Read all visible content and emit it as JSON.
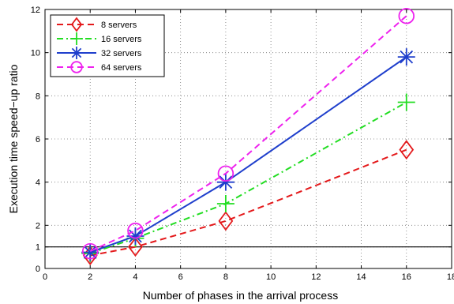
{
  "chart_data": {
    "type": "line",
    "xlabel": "Number of phases in the arrival process",
    "ylabel": "Execution time speed−up ratio",
    "xlim": [
      0,
      18
    ],
    "ylim": [
      0,
      12
    ],
    "xticks": [
      0,
      2,
      4,
      6,
      8,
      10,
      12,
      14,
      16,
      18
    ],
    "yticks": [
      0,
      1,
      2,
      4,
      6,
      8,
      10,
      12
    ],
    "grid": true,
    "legend_position": "top-left",
    "reference_line": {
      "y": 1
    },
    "x": [
      2,
      4,
      8,
      16
    ],
    "series": [
      {
        "name": "8 servers",
        "values": [
          0.6,
          1.0,
          2.2,
          5.5
        ],
        "color": "#e41a1c",
        "dash": "dashed",
        "marker": "diamond"
      },
      {
        "name": "16 servers",
        "values": [
          0.7,
          1.4,
          3.0,
          7.7
        ],
        "color": "#22dd22",
        "dash": "dashdot",
        "marker": "plus"
      },
      {
        "name": "32 servers",
        "values": [
          0.75,
          1.5,
          4.0,
          9.8
        ],
        "color": "#1f3fcc",
        "dash": "solid",
        "marker": "asterisk"
      },
      {
        "name": "64 servers",
        "values": [
          0.8,
          1.75,
          4.4,
          11.7
        ],
        "color": "#ee22ee",
        "dash": "dashed",
        "marker": "circle"
      }
    ]
  }
}
